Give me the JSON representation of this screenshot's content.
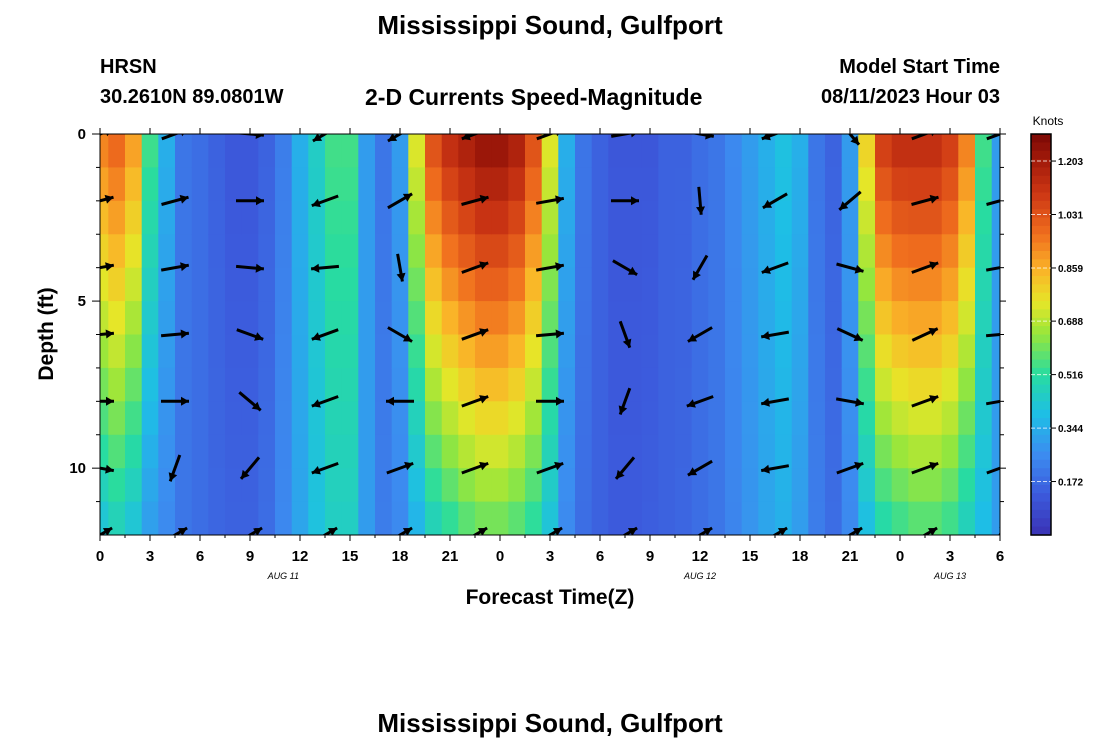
{
  "header": {
    "title": "Mississippi Sound, Gulfport",
    "station": "HRSN",
    "coords": "30.2610N  89.0801W",
    "variable": "2-D Currents Speed-Magnitude",
    "model_start_label": "Model Start Time",
    "model_start_value": "08/11/2023 Hour 03"
  },
  "footer": {
    "title": "Mississippi Sound, Gulfport"
  },
  "chart_data": {
    "type": "heatmap",
    "xlabel": "Forecast Time(Z)",
    "ylabel": "Depth (ft)",
    "x_range_hours": [
      0,
      54
    ],
    "y_range_ft": [
      0,
      12
    ],
    "x_tick_labels": [
      "0",
      "3",
      "6",
      "9",
      "12",
      "15",
      "18",
      "21",
      "0",
      "3",
      "6",
      "9",
      "12",
      "15",
      "18",
      "21",
      "0",
      "3",
      "6"
    ],
    "y_tick_labels": [
      "0",
      "5",
      "10"
    ],
    "y_tick_values": [
      0,
      5,
      10
    ],
    "date_labels": [
      {
        "label": "AUG 11",
        "hour": 11
      },
      {
        "label": "AUG 12",
        "hour": 36
      },
      {
        "label": "AUG 13",
        "hour": 51
      }
    ],
    "colorbar": {
      "unit": "Knots",
      "min": 0.0,
      "max": 1.29,
      "tick_labels": [
        "1.203",
        "1.031",
        "0.859",
        "0.688",
        "0.516",
        "0.344",
        "0.172"
      ],
      "tick_values": [
        1.203,
        1.031,
        0.859,
        0.688,
        0.516,
        0.344,
        0.172
      ]
    },
    "speed_profile_knots": {
      "hours": [
        0,
        1,
        2,
        3,
        4,
        5,
        6,
        7,
        8,
        9,
        10,
        11,
        12,
        13,
        14,
        15,
        16,
        17,
        18,
        19,
        20,
        21,
        22,
        23,
        24,
        25,
        26,
        27,
        28,
        29,
        30,
        31,
        32,
        33,
        34,
        35,
        36,
        37,
        38,
        39,
        40,
        41,
        42,
        43,
        44,
        45,
        46,
        47,
        48,
        49,
        50,
        51,
        52,
        53,
        54
      ],
      "surface": [
        0.95,
        1.0,
        0.9,
        0.55,
        0.35,
        0.2,
        0.18,
        0.15,
        0.12,
        0.12,
        0.15,
        0.22,
        0.35,
        0.45,
        0.55,
        0.55,
        0.3,
        0.2,
        0.3,
        0.75,
        1.05,
        1.15,
        1.2,
        1.25,
        1.25,
        1.2,
        1.05,
        0.75,
        0.35,
        0.2,
        0.15,
        0.12,
        0.12,
        0.12,
        0.15,
        0.15,
        0.18,
        0.2,
        0.25,
        0.3,
        0.35,
        0.4,
        0.35,
        0.2,
        0.15,
        0.3,
        0.8,
        1.1,
        1.15,
        1.15,
        1.15,
        1.1,
        0.95,
        0.55,
        0.3
      ],
      "bottom": [
        0.4,
        0.45,
        0.4,
        0.3,
        0.25,
        0.2,
        0.18,
        0.16,
        0.15,
        0.15,
        0.18,
        0.25,
        0.32,
        0.4,
        0.45,
        0.45,
        0.3,
        0.22,
        0.25,
        0.35,
        0.45,
        0.5,
        0.55,
        0.58,
        0.58,
        0.55,
        0.5,
        0.4,
        0.25,
        0.18,
        0.15,
        0.13,
        0.13,
        0.14,
        0.15,
        0.16,
        0.18,
        0.2,
        0.24,
        0.28,
        0.32,
        0.35,
        0.3,
        0.22,
        0.18,
        0.25,
        0.38,
        0.48,
        0.52,
        0.55,
        0.55,
        0.52,
        0.45,
        0.38,
        0.3
      ]
    },
    "current_vectors_deg": {
      "note": "direction of flow, degrees clockwise from north",
      "depths_ft": [
        0,
        2,
        4,
        6,
        8,
        10,
        12
      ],
      "hours": [
        0,
        4.5,
        9,
        13.5,
        18,
        22.5,
        27,
        31.5,
        36,
        40.5,
        45,
        49.5,
        54
      ],
      "angles": [
        [
          70,
          70,
          95,
          240,
          240,
          250,
          70,
          80,
          100,
          250,
          140,
          70,
          70
        ],
        [
          75,
          75,
          90,
          250,
          60,
          75,
          80,
          90,
          175,
          240,
          230,
          75,
          75
        ],
        [
          80,
          80,
          95,
          265,
          170,
          70,
          80,
          120,
          210,
          250,
          105,
          70,
          80
        ],
        [
          85,
          85,
          110,
          250,
          120,
          70,
          85,
          160,
          240,
          260,
          115,
          65,
          85
        ],
        [
          90,
          90,
          130,
          250,
          270,
          70,
          90,
          200,
          250,
          260,
          100,
          70,
          80
        ],
        [
          100,
          200,
          220,
          250,
          70,
          70,
          70,
          220,
          240,
          260,
          70,
          70,
          70
        ],
        [
          60,
          60,
          60,
          60,
          60,
          60,
          60,
          60,
          60,
          60,
          60,
          60,
          30
        ]
      ]
    }
  }
}
